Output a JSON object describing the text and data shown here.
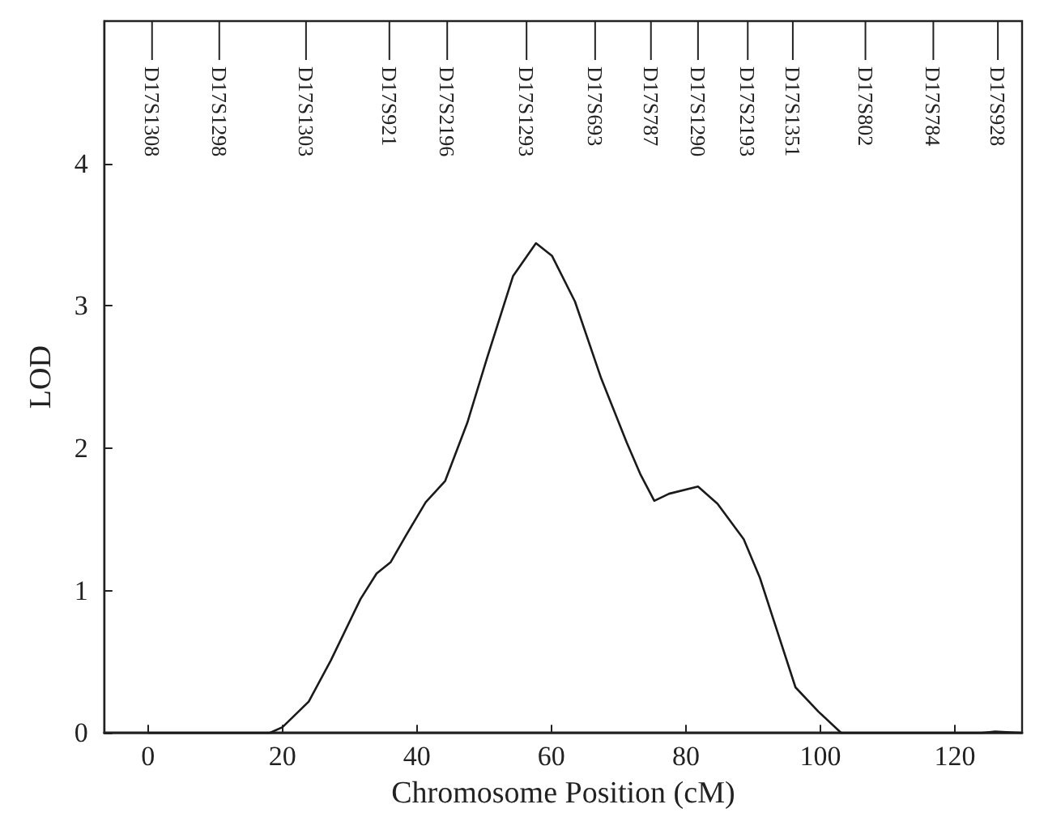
{
  "chart_data": {
    "type": "line",
    "xlabel": "Chromosome Position (cM)",
    "ylabel": "LOD",
    "xlim": [
      -6.5,
      130
    ],
    "xticks": [
      0,
      20,
      40,
      60,
      80,
      100,
      120
    ],
    "ylim": [
      0,
      5
    ],
    "yticks": [
      0,
      1,
      2,
      3,
      4
    ],
    "ref_lines": [
      {
        "axis": "x",
        "value": 0.6,
        "label": "D17S1308"
      },
      {
        "axis": "x",
        "value": 10.6,
        "label": "D17S1298"
      },
      {
        "axis": "x",
        "value": 23.5,
        "label": "D17S1303"
      },
      {
        "axis": "x",
        "value": 35.9,
        "label": "D17S921"
      },
      {
        "axis": "x",
        "value": 44.5,
        "label": "D17S2196"
      },
      {
        "axis": "x",
        "value": 56.3,
        "label": "D17S1293"
      },
      {
        "axis": "x",
        "value": 66.5,
        "label": "D17S693"
      },
      {
        "axis": "x",
        "value": 74.8,
        "label": "D17S787"
      },
      {
        "axis": "x",
        "value": 81.8,
        "label": "D17S1290"
      },
      {
        "axis": "x",
        "value": 89.2,
        "label": "D17S2193"
      },
      {
        "axis": "x",
        "value": 95.9,
        "label": "D17S1351"
      },
      {
        "axis": "x",
        "value": 106.7,
        "label": "D17S802"
      },
      {
        "axis": "x",
        "value": 116.8,
        "label": "D17S784"
      },
      {
        "axis": "x",
        "value": 126.4,
        "label": "D17S928"
      }
    ],
    "grid": false,
    "marker": "none",
    "line_style": "solid",
    "series": [
      {
        "color": "#1a1a1a",
        "x": [
          0,
          18.1,
          20,
          23.9,
          27.2,
          31.6,
          34,
          36.1,
          38.4,
          41.3,
          44.2,
          47.5,
          50.4,
          54.3,
          57.7,
          60.1,
          63.5,
          67.4,
          71.2,
          73.2,
          75.3,
          77.5,
          81.8,
          84.7,
          88.6,
          91,
          96.3,
          99.7,
          103.1,
          124,
          126,
          130
        ],
        "values": [
          0,
          0,
          0.04,
          0.22,
          0.51,
          0.94,
          1.12,
          1.2,
          1.39,
          1.62,
          1.77,
          2.18,
          2.63,
          3.21,
          3.44,
          3.35,
          3.03,
          2.49,
          2.04,
          1.82,
          1.63,
          1.68,
          1.73,
          1.61,
          1.36,
          1.09,
          0.32,
          0.15,
          0,
          0,
          0.01,
          0
        ]
      }
    ]
  }
}
